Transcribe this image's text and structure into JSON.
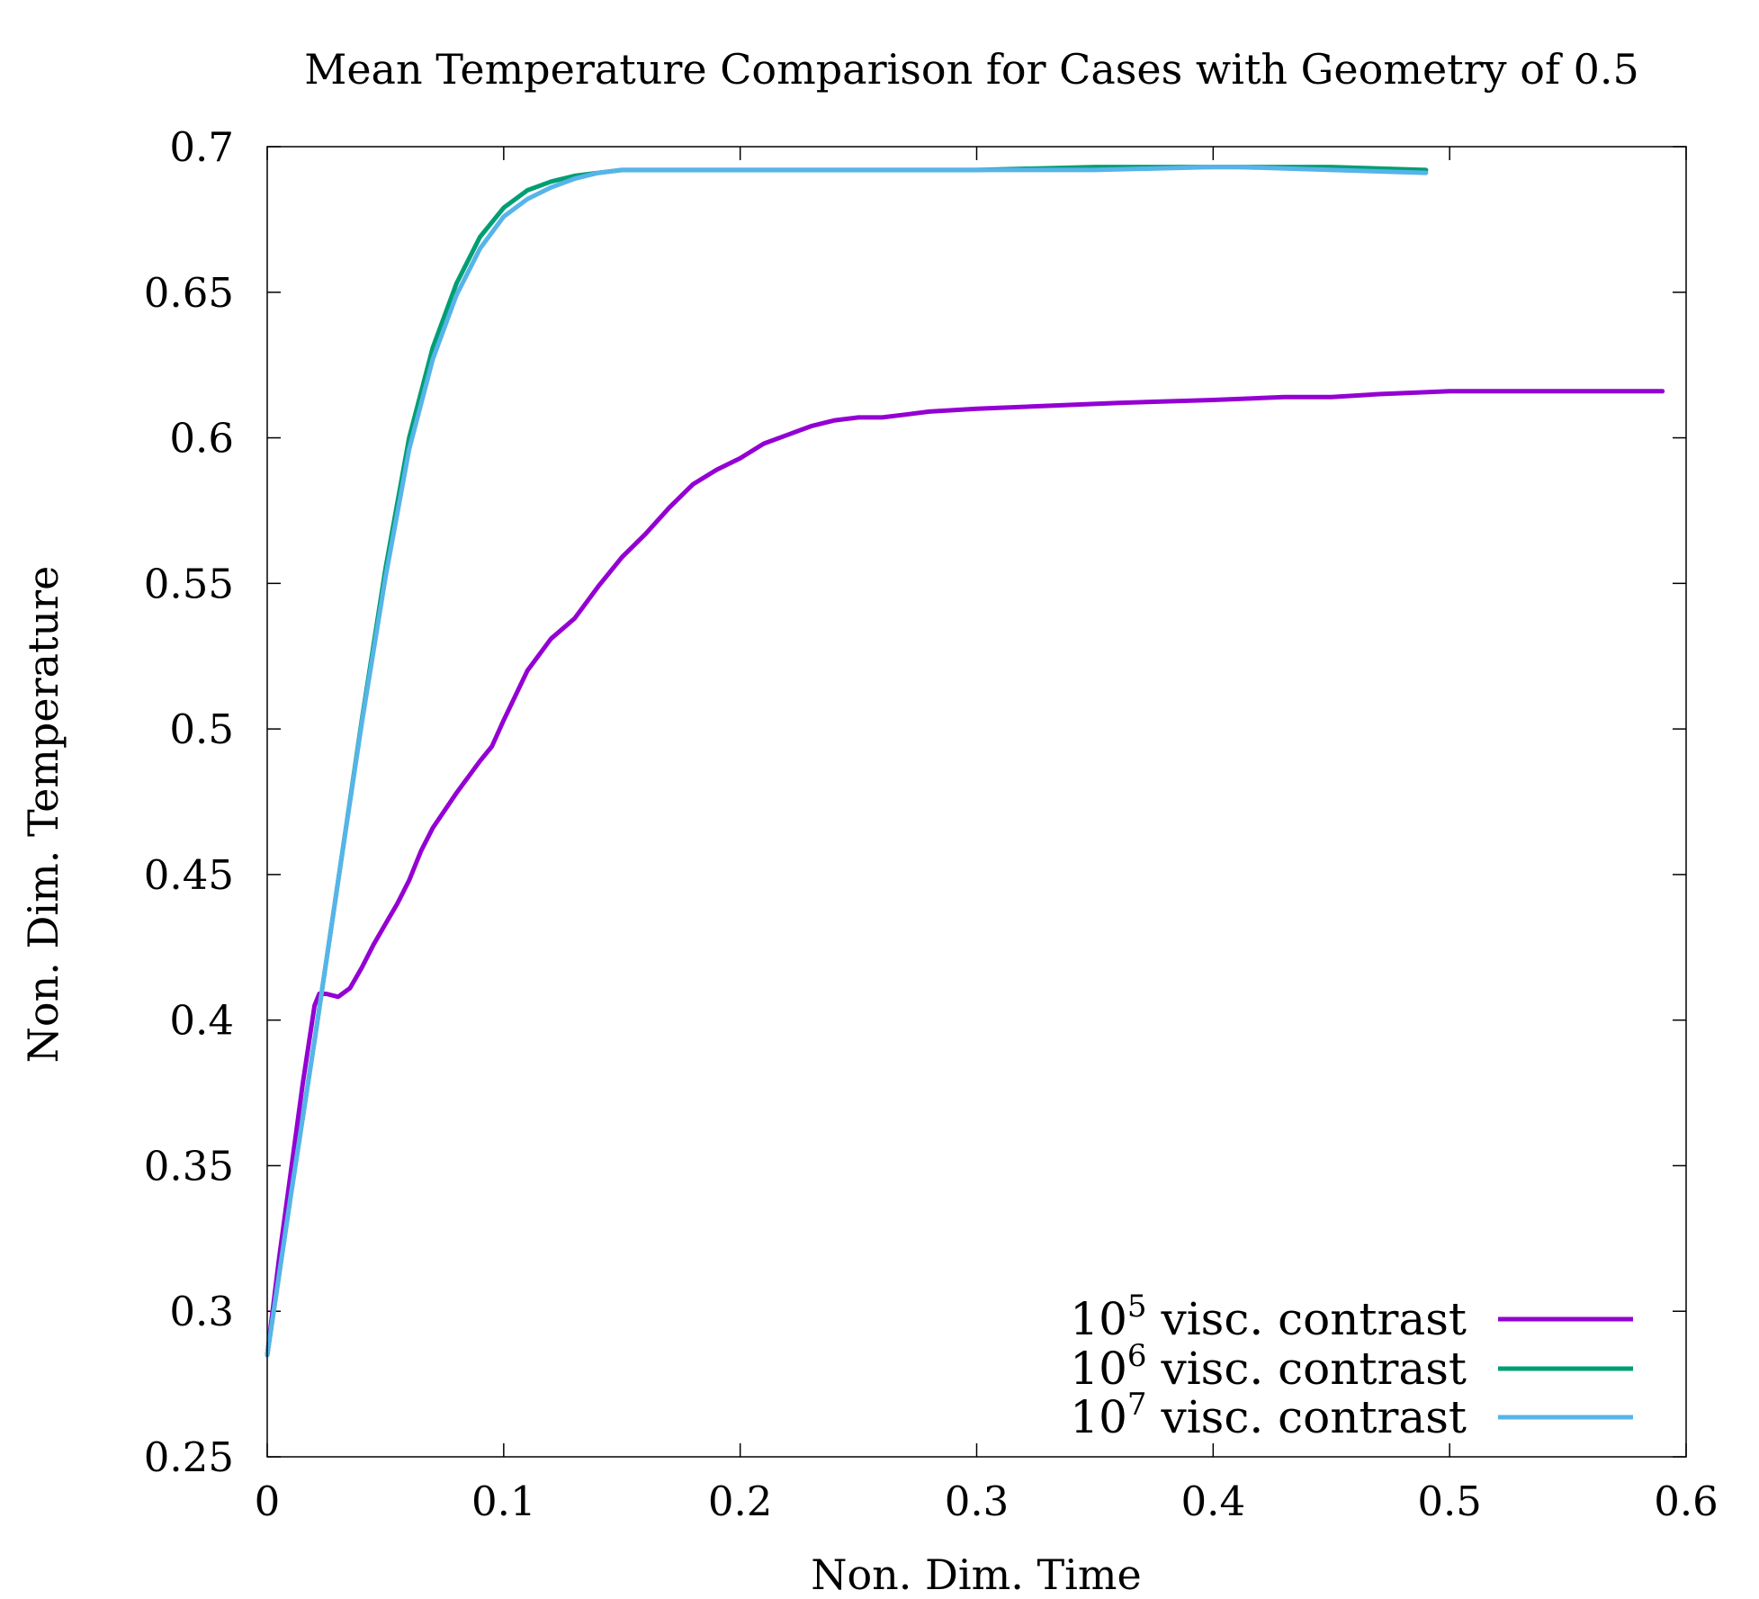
{
  "chart_data": {
    "type": "line",
    "title": "Mean Temperature Comparison for Cases with Geometry of 0.5",
    "xlabel": "Non. Dim. Time",
    "ylabel": "Non. Dim. Temperature",
    "xlim": [
      0,
      0.6
    ],
    "ylim": [
      0.25,
      0.7
    ],
    "xticks": [
      "0",
      "0.1",
      "0.2",
      "0.3",
      "0.4",
      "0.5",
      "0.6"
    ],
    "yticks": [
      "0.25",
      "0.3",
      "0.35",
      "0.4",
      "0.45",
      "0.5",
      "0.55",
      "0.6",
      "0.65",
      "0.7"
    ],
    "grid": false,
    "legend_position": "bottom-right",
    "series": [
      {
        "name": "10⁵ visc. contrast",
        "legend_base": "10",
        "legend_exp": "5",
        "legend_rest": " visc. contrast",
        "color": "#9400d3",
        "x": [
          0,
          0.005,
          0.01,
          0.015,
          0.02,
          0.022,
          0.025,
          0.03,
          0.035,
          0.04,
          0.045,
          0.05,
          0.055,
          0.06,
          0.065,
          0.07,
          0.08,
          0.09,
          0.095,
          0.1,
          0.11,
          0.12,
          0.13,
          0.14,
          0.15,
          0.16,
          0.17,
          0.18,
          0.19,
          0.2,
          0.21,
          0.22,
          0.23,
          0.24,
          0.25,
          0.26,
          0.27,
          0.28,
          0.3,
          0.33,
          0.36,
          0.4,
          0.43,
          0.45,
          0.47,
          0.5,
          0.53,
          0.55,
          0.59
        ],
        "y": [
          0.285,
          0.318,
          0.348,
          0.378,
          0.405,
          0.409,
          0.409,
          0.408,
          0.411,
          0.418,
          0.426,
          0.433,
          0.44,
          0.448,
          0.458,
          0.466,
          0.478,
          0.489,
          0.494,
          0.503,
          0.52,
          0.531,
          0.538,
          0.549,
          0.559,
          0.567,
          0.576,
          0.584,
          0.589,
          0.593,
          0.598,
          0.601,
          0.604,
          0.606,
          0.607,
          0.607,
          0.608,
          0.609,
          0.61,
          0.611,
          0.612,
          0.613,
          0.614,
          0.614,
          0.615,
          0.616,
          0.616,
          0.616,
          0.616
        ]
      },
      {
        "name": "10⁶ visc. contrast",
        "legend_base": "10",
        "legend_exp": "6",
        "legend_rest": " visc. contrast",
        "color": "#009e73",
        "x": [
          0,
          0.01,
          0.02,
          0.03,
          0.04,
          0.05,
          0.06,
          0.07,
          0.08,
          0.09,
          0.1,
          0.11,
          0.12,
          0.13,
          0.14,
          0.15,
          0.16,
          0.2,
          0.25,
          0.3,
          0.35,
          0.4,
          0.45,
          0.49
        ],
        "y": [
          0.285,
          0.34,
          0.393,
          0.448,
          0.503,
          0.555,
          0.6,
          0.631,
          0.653,
          0.669,
          0.679,
          0.685,
          0.688,
          0.69,
          0.691,
          0.692,
          0.692,
          0.692,
          0.692,
          0.692,
          0.693,
          0.693,
          0.693,
          0.692
        ]
      },
      {
        "name": "10⁷ visc. contrast",
        "legend_base": "10",
        "legend_exp": "7",
        "legend_rest": " visc. contrast",
        "color": "#56b4e9",
        "x": [
          0,
          0.01,
          0.02,
          0.03,
          0.04,
          0.05,
          0.06,
          0.07,
          0.08,
          0.09,
          0.1,
          0.11,
          0.12,
          0.13,
          0.14,
          0.15,
          0.16,
          0.2,
          0.25,
          0.3,
          0.35,
          0.4,
          0.41,
          0.45,
          0.49
        ],
        "y": [
          0.285,
          0.34,
          0.393,
          0.448,
          0.502,
          0.552,
          0.596,
          0.627,
          0.649,
          0.665,
          0.676,
          0.682,
          0.686,
          0.689,
          0.691,
          0.692,
          0.692,
          0.692,
          0.692,
          0.692,
          0.692,
          0.693,
          0.693,
          0.692,
          0.691
        ]
      }
    ]
  }
}
